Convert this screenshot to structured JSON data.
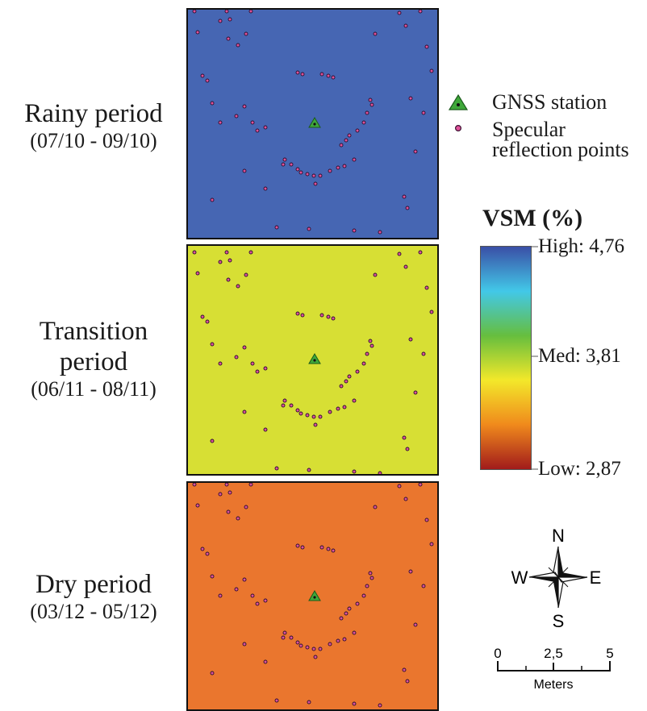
{
  "periods": [
    {
      "name": "Rainy period",
      "dates": "(07/10 - 09/10)",
      "color": "#3f60b0"
    },
    {
      "name_line1": "Transition",
      "name_line2": "period",
      "dates": "(06/11 - 08/11)",
      "color": "#d6de2c"
    },
    {
      "name": "Dry period",
      "dates": "(03/12 - 05/12)",
      "color": "#ea7126"
    }
  ],
  "legend": {
    "station_label": "GNSS station",
    "specular_line1": "Specular",
    "specular_line2": "reflection points",
    "station_color": "#3fa83a",
    "point_color": "#e0529a"
  },
  "vsm": {
    "title": "VSM (%)",
    "high_label": "High: 4,76",
    "med_label": "Med: 3,81",
    "low_label": "Low: 2,87",
    "colors": [
      "#3a4fa6",
      "#42c8e8",
      "#66be3e",
      "#f3e82a",
      "#f08a1c",
      "#a11b1b"
    ]
  },
  "north_arrow": {
    "n": "N",
    "s": "S",
    "e": "E",
    "w": "W"
  },
  "scale_bar": {
    "ticks": [
      "0",
      "2,5",
      "5"
    ],
    "unit": "Meters"
  }
}
